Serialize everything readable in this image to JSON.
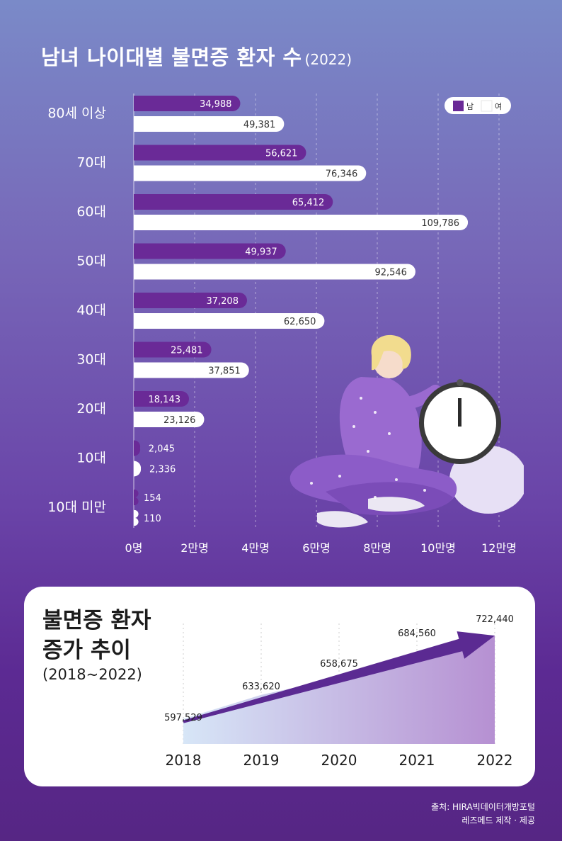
{
  "title": "남녀 나이대별 불면증 환자 수",
  "title_year": "(2022)",
  "legend": {
    "male": "남",
    "female": "여"
  },
  "x_ticks": [
    "0명",
    "2만명",
    "4만명",
    "6만명",
    "8만명",
    "10만명",
    "12만명"
  ],
  "colors": {
    "male": "#6a2a97",
    "female": "#ffffff",
    "trend_arrow": "#5b2a92",
    "label_dark": "#333333"
  },
  "chart_data": [
    {
      "type": "bar",
      "orientation": "horizontal",
      "title": "남녀 나이대별 불면증 환자 수 (2022)",
      "categories": [
        "80세 이상",
        "70대",
        "60대",
        "50대",
        "40대",
        "30대",
        "20대",
        "10대",
        "10대 미만"
      ],
      "series": [
        {
          "name": "남",
          "values": [
            34988,
            56621,
            65412,
            49937,
            37208,
            25481,
            18143,
            2045,
            154
          ],
          "labels": [
            "34,988",
            "56,621",
            "65,412",
            "49,937",
            "37,208",
            "25,481",
            "18,143",
            "2,045",
            "154"
          ]
        },
        {
          "name": "여",
          "values": [
            49381,
            76346,
            109786,
            92546,
            62650,
            37851,
            23126,
            2336,
            110
          ],
          "labels": [
            "49,381",
            "76,346",
            "109,786",
            "92,546",
            "62,650",
            "37,851",
            "23,126",
            "2,336",
            "110"
          ]
        }
      ],
      "xlim": [
        0,
        120000
      ],
      "grid": true,
      "legend_position": "top-right"
    },
    {
      "type": "area",
      "title": "불면증 환자 증가 추이",
      "x": [
        "2018",
        "2019",
        "2020",
        "2021",
        "2022"
      ],
      "values": [
        597529,
        633620,
        658675,
        684560,
        722440
      ],
      "labels": [
        "597,529",
        "633,620",
        "658,675",
        "684,560",
        "722,440"
      ],
      "grid": true
    }
  ],
  "trend": {
    "title_line1": "불면증 환자",
    "title_line2": "증가 추이",
    "range": "(2018~2022)"
  },
  "source": {
    "line1": "출처: HIRA빅데이터개방포털",
    "line2": "레즈메드 제작 · 제공"
  }
}
